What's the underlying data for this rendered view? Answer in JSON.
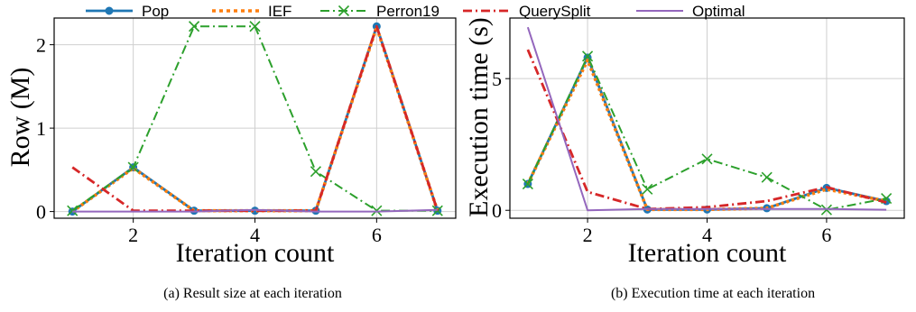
{
  "legend": [
    {
      "name": "Pop",
      "color": "#1f77b4",
      "style": "solid",
      "marker": "circle"
    },
    {
      "name": "IEF",
      "color": "#ff7f0e",
      "style": "dotted",
      "marker": "none"
    },
    {
      "name": "Perron19",
      "color": "#2ca02c",
      "style": "dashdot",
      "marker": "x"
    },
    {
      "name": "QuerySplit",
      "color": "#d62728",
      "style": "dashdot",
      "marker": "none"
    },
    {
      "name": "Optimal",
      "color": "#9467bd",
      "style": "solid",
      "marker": "none"
    }
  ],
  "chart_data": [
    {
      "type": "line",
      "caption": "(a) Result size at each iteration",
      "xlabel": "Iteration count",
      "ylabel": "Row (M)",
      "xlim": [
        0.7,
        7.3
      ],
      "ylim": [
        -0.08,
        2.32
      ],
      "xticks": [
        2,
        4,
        6
      ],
      "xtick_labels": [
        "2",
        "4",
        "6"
      ],
      "yticks": [
        0,
        1,
        2
      ],
      "ytick_labels": [
        "0",
        "1",
        "2"
      ],
      "grid": true,
      "x": [
        1,
        2,
        3,
        4,
        5,
        6,
        7
      ],
      "series": [
        {
          "name": "Pop",
          "values": [
            0.0,
            0.53,
            0.01,
            0.01,
            0.01,
            2.22,
            0.01
          ]
        },
        {
          "name": "IEF",
          "values": [
            0.0,
            0.52,
            0.01,
            0.01,
            0.01,
            2.21,
            0.01
          ]
        },
        {
          "name": "Perron19",
          "values": [
            0.01,
            0.53,
            2.22,
            2.22,
            0.48,
            0.01,
            0.01
          ]
        },
        {
          "name": "QuerySplit",
          "values": [
            0.53,
            0.01,
            0.01,
            0.01,
            0.01,
            2.22,
            0.01
          ]
        },
        {
          "name": "Optimal",
          "values": [
            0.0,
            0.0,
            0.0,
            0.02,
            0.0,
            0.0,
            0.02
          ]
        }
      ]
    },
    {
      "type": "line",
      "caption": "(b) Execution time at each iteration",
      "xlabel": "Iteration count",
      "ylabel": "Execution time (s)",
      "xlim": [
        0.7,
        7.3
      ],
      "ylim": [
        -0.3,
        7.3
      ],
      "xticks": [
        2,
        4,
        6
      ],
      "xtick_labels": [
        "2",
        "4",
        "6"
      ],
      "yticks": [
        0,
        5
      ],
      "ytick_labels": [
        "0",
        "5"
      ],
      "grid": true,
      "x": [
        1,
        2,
        3,
        4,
        5,
        6,
        7
      ],
      "series": [
        {
          "name": "Pop",
          "values": [
            1.0,
            5.8,
            0.03,
            0.03,
            0.08,
            0.85,
            0.35
          ]
        },
        {
          "name": "IEF",
          "values": [
            1.0,
            5.7,
            0.03,
            0.03,
            0.08,
            0.8,
            0.35
          ]
        },
        {
          "name": "Perron19",
          "values": [
            1.0,
            5.85,
            0.8,
            1.95,
            1.25,
            0.02,
            0.45
          ]
        },
        {
          "name": "QuerySplit",
          "values": [
            6.1,
            0.7,
            0.05,
            0.12,
            0.35,
            0.88,
            0.3
          ]
        },
        {
          "name": "Optimal",
          "values": [
            6.95,
            0.0,
            0.05,
            0.05,
            0.05,
            0.05,
            0.02
          ]
        }
      ]
    }
  ]
}
